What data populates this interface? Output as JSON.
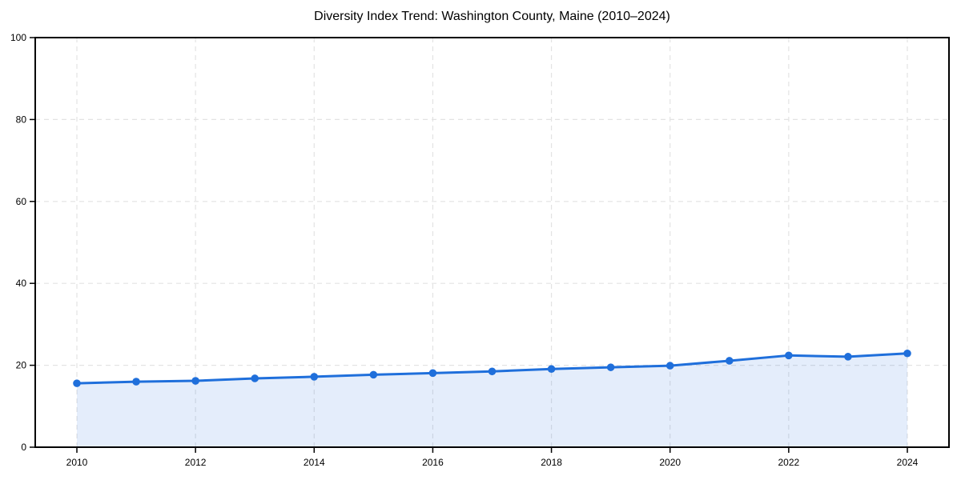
{
  "page": {
    "background": "#ffffff"
  },
  "chart_data": {
    "type": "area",
    "title": "Diversity Index Trend: Washington County, Maine (2010–2024)",
    "x": [
      2010,
      2011,
      2012,
      2013,
      2014,
      2015,
      2016,
      2017,
      2018,
      2019,
      2020,
      2021,
      2022,
      2023,
      2024
    ],
    "values": [
      15.6,
      16.0,
      16.2,
      16.8,
      17.2,
      17.7,
      18.1,
      18.5,
      19.1,
      19.5,
      19.9,
      21.1,
      22.4,
      22.1,
      22.9
    ],
    "series_name": "Diversity Index",
    "xlabel": "",
    "ylabel": "",
    "ylim": [
      0,
      100
    ],
    "yticks": [
      0,
      20,
      40,
      60,
      80,
      100
    ],
    "xticks": [
      2010,
      2012,
      2014,
      2016,
      2018,
      2020,
      2022,
      2024
    ],
    "grid": true,
    "grid_style": "dashed",
    "legend_visible": false,
    "marker": "circle",
    "colors": {
      "line": "#1f6fdb",
      "fill": "#1f6fdb",
      "fill_opacity": 0.12,
      "grid": "#e3e3e3",
      "axis": "#000000",
      "text": "#000000",
      "background": "#ffffff"
    }
  }
}
